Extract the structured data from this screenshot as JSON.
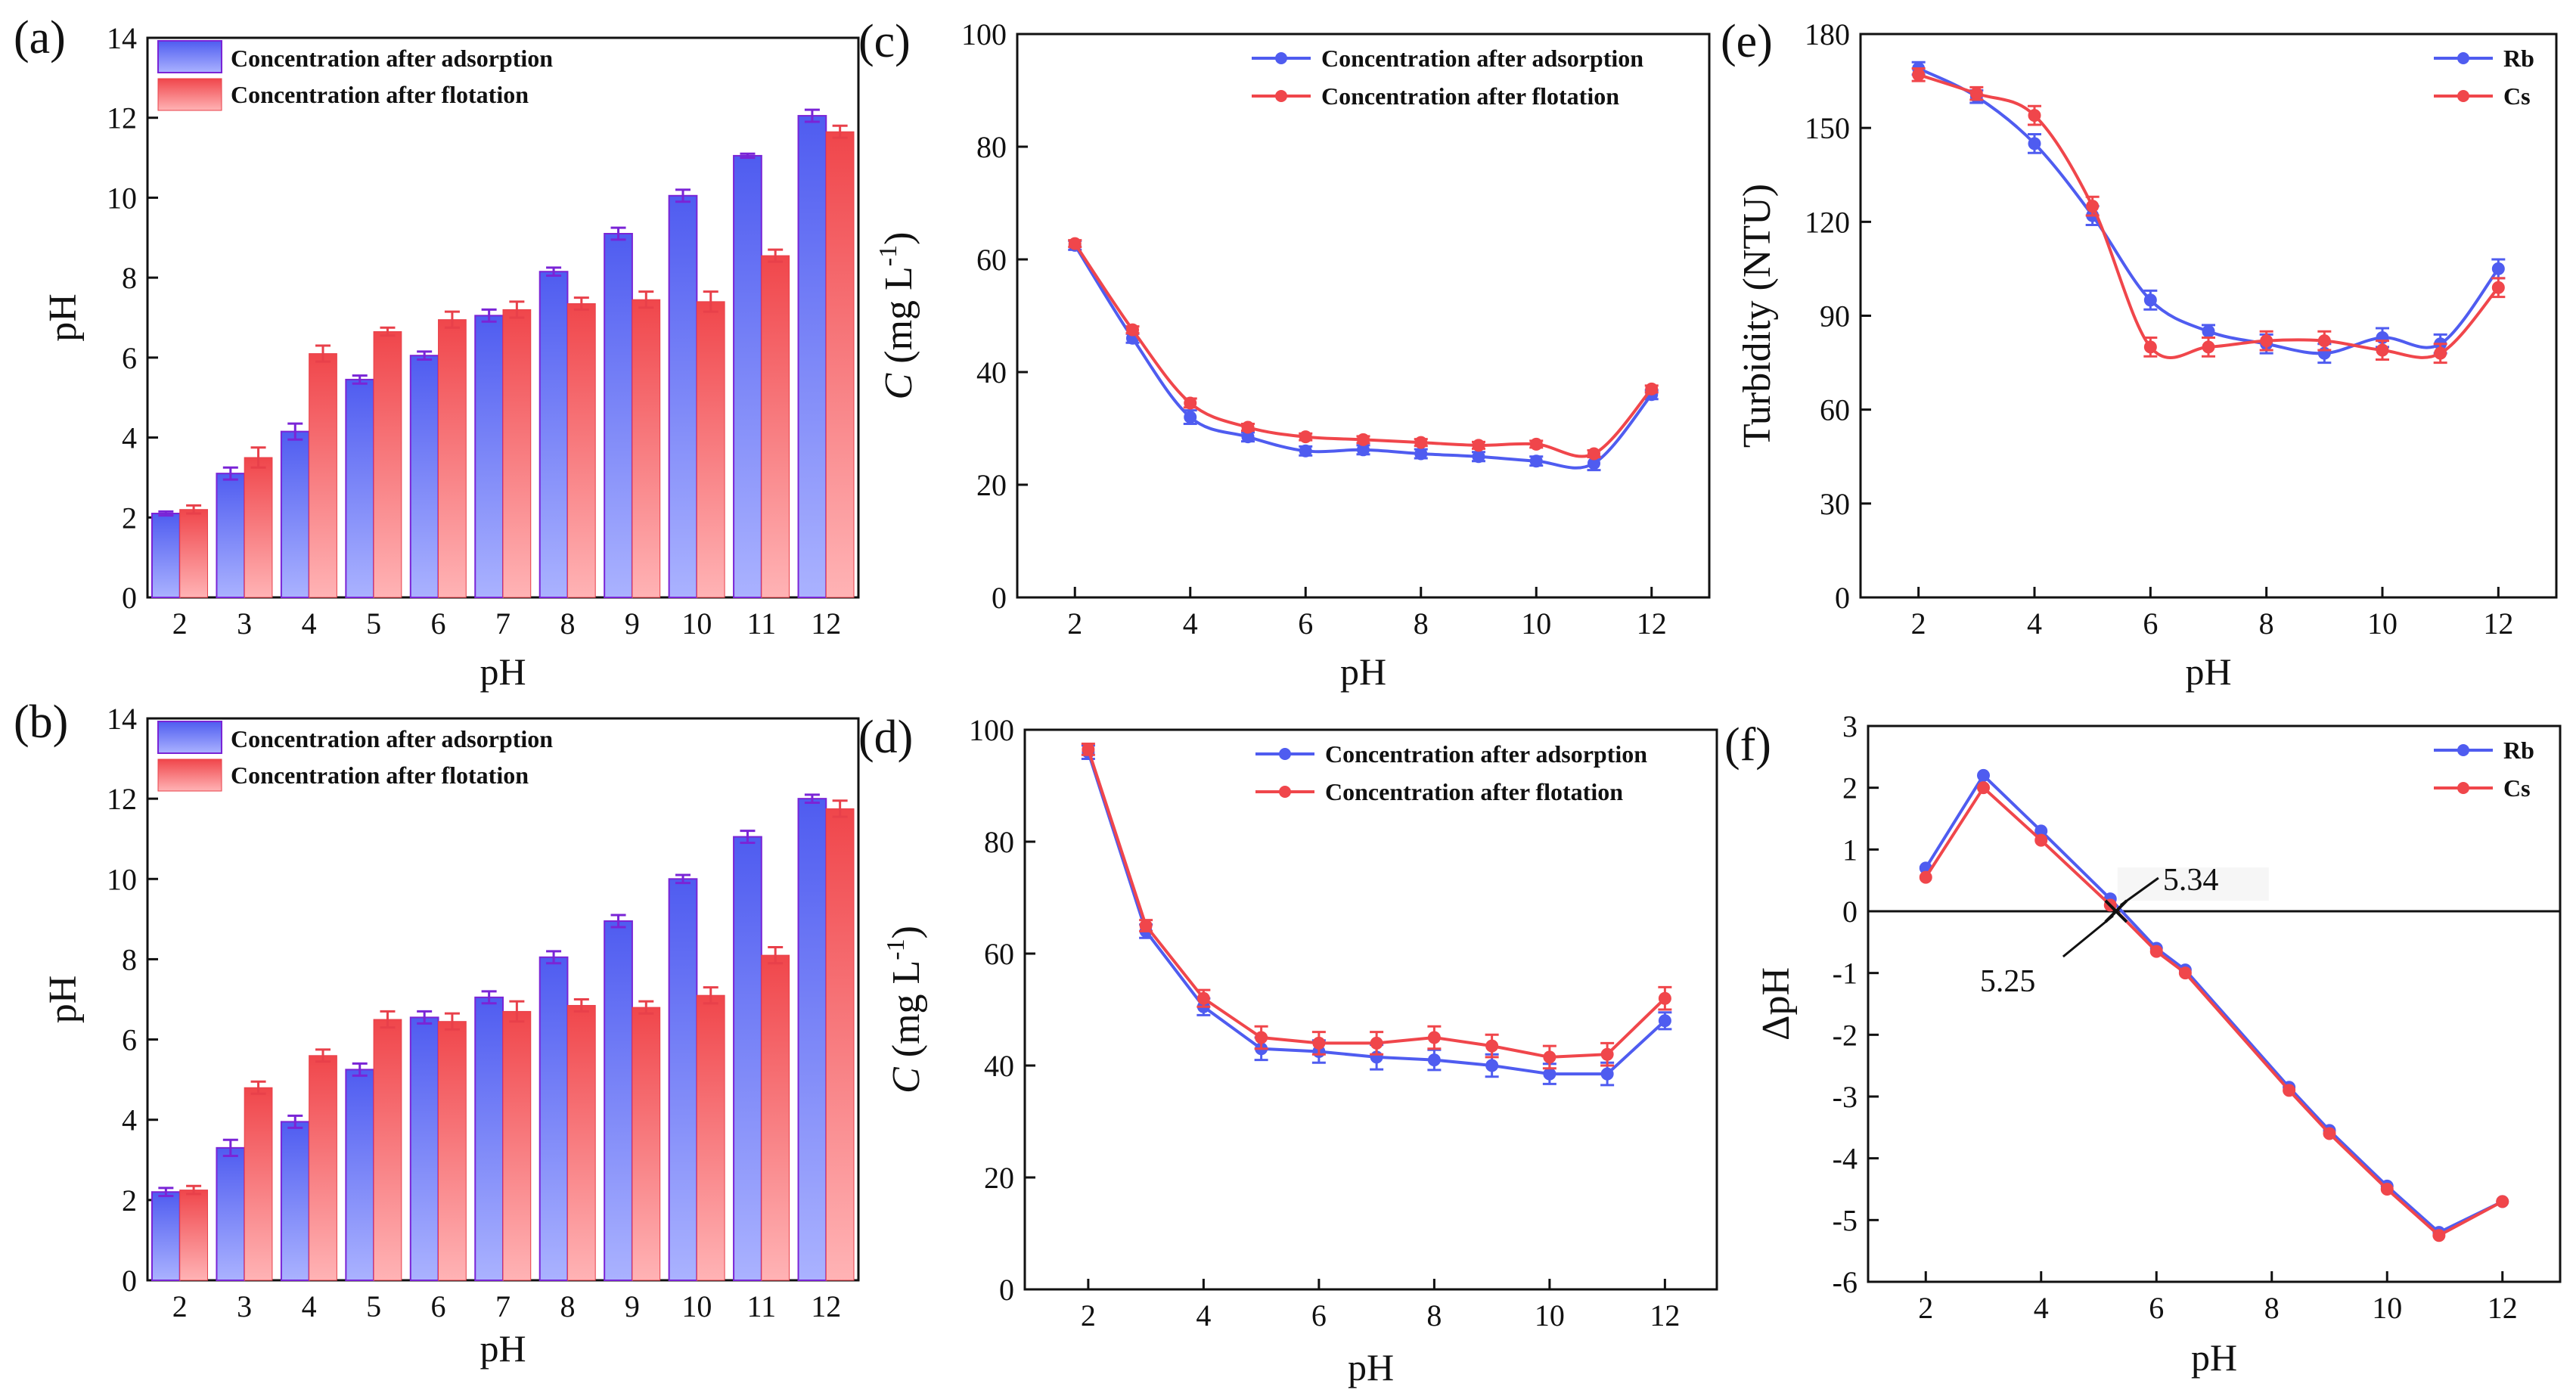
{
  "colors": {
    "blue": "#4f5cf0",
    "blue_light": "#aab2ff",
    "blue_edge": "#7a24d6",
    "red": "#f0464b",
    "red_light": "#ffb3b5",
    "red_edge": "#e8404a",
    "axis": "#111111"
  },
  "chart_data": [
    {
      "panel": "(a)",
      "type": "bar",
      "categories": [
        "2",
        "3",
        "4",
        "5",
        "6",
        "7",
        "8",
        "9",
        "10",
        "11",
        "12"
      ],
      "series": [
        {
          "name": "Concentration after adsorption",
          "values": [
            2.1,
            3.1,
            4.15,
            5.45,
            6.05,
            7.05,
            8.15,
            9.1,
            10.05,
            11.05,
            12.05
          ],
          "errors": [
            0.05,
            0.15,
            0.2,
            0.1,
            0.1,
            0.15,
            0.1,
            0.15,
            0.15,
            0.05,
            0.15
          ]
        },
        {
          "name": "Concentration after flotation",
          "values": [
            2.2,
            3.5,
            6.1,
            6.65,
            6.95,
            7.2,
            7.35,
            7.45,
            7.4,
            8.55,
            11.65
          ]
        }
      ],
      "errors_red": [
        0.1,
        0.25,
        0.2,
        0.1,
        0.2,
        0.2,
        0.15,
        0.2,
        0.25,
        0.15,
        0.15
      ],
      "xlabel": "pH",
      "ylabel": "pH",
      "ylim": [
        0,
        14
      ],
      "yticks": [
        0,
        2,
        4,
        6,
        8,
        10,
        12,
        14
      ]
    },
    {
      "panel": "(b)",
      "type": "bar",
      "categories": [
        "2",
        "3",
        "4",
        "5",
        "6",
        "7",
        "8",
        "9",
        "10",
        "11",
        "12"
      ],
      "series": [
        {
          "name": "Concentration after adsorption",
          "values": [
            2.2,
            3.3,
            3.95,
            5.25,
            6.55,
            7.05,
            8.05,
            8.95,
            10.0,
            11.05,
            12.0
          ],
          "errors": [
            0.1,
            0.2,
            0.15,
            0.15,
            0.15,
            0.15,
            0.15,
            0.15,
            0.1,
            0.15,
            0.1
          ]
        },
        {
          "name": "Concentration after flotation",
          "values": [
            2.25,
            4.8,
            5.6,
            6.5,
            6.45,
            6.7,
            6.85,
            6.8,
            7.1,
            8.1,
            11.75
          ]
        }
      ],
      "errors_red": [
        0.1,
        0.15,
        0.15,
        0.2,
        0.2,
        0.25,
        0.15,
        0.15,
        0.2,
        0.2,
        0.2
      ],
      "xlabel": "pH",
      "ylabel": "pH",
      "ylim": [
        0,
        14
      ],
      "yticks": [
        0,
        2,
        4,
        6,
        8,
        10,
        12,
        14
      ]
    },
    {
      "panel": "(c)",
      "type": "line",
      "x": [
        2,
        3,
        4,
        5,
        6,
        7,
        8,
        9,
        10,
        11,
        12
      ],
      "series": [
        {
          "name": "Concentration after adsorption",
          "values": [
            62.5,
            46,
            32,
            28.5,
            26,
            26.2,
            25.5,
            25,
            24.2,
            23.8,
            36
          ],
          "errors": [
            0.8,
            0.8,
            1.2,
            0.8,
            0.8,
            0.8,
            0.8,
            0.8,
            0.8,
            1.2,
            0.8
          ]
        },
        {
          "name": "Concentration after flotation",
          "values": [
            62.8,
            47.5,
            34.5,
            30.2,
            28.5,
            28,
            27.5,
            27,
            27.2,
            25.5,
            37
          ]
        }
      ],
      "errors_red": [
        0.6,
        0.6,
        0.8,
        0.6,
        0.6,
        0.6,
        0.6,
        0.6,
        0.6,
        0.6,
        0.6
      ],
      "xlabel": "pH",
      "ylabel_italic": "C",
      "ylabel_rest": " (mg L",
      "ylabel_sup": "-1",
      "ylabel_close": ")",
      "xlim": [
        1,
        13
      ],
      "xticks": [
        2,
        4,
        6,
        8,
        10,
        12
      ],
      "ylim": [
        0,
        100
      ],
      "yticks": [
        0,
        20,
        40,
        60,
        80,
        100
      ]
    },
    {
      "panel": "(d)",
      "type": "line",
      "x": [
        2,
        3,
        4,
        5,
        6,
        7,
        8,
        9,
        10,
        11,
        12
      ],
      "series": [
        {
          "name": "Concentration after adsorption",
          "values": [
            96,
            64,
            50.5,
            43,
            42.5,
            41.5,
            41,
            40,
            38.5,
            38.5,
            48
          ],
          "errors": [
            1.2,
            1.2,
            1.5,
            2,
            2,
            2.2,
            1.8,
            2,
            1.8,
            2,
            1.5
          ]
        },
        {
          "name": "Concentration after flotation",
          "values": [
            96.5,
            65,
            52,
            45,
            44,
            44,
            45,
            43.5,
            41.5,
            42,
            52
          ]
        }
      ],
      "errors_red": [
        1,
        1,
        1.5,
        2,
        2,
        2,
        2,
        2,
        2,
        2,
        2
      ],
      "xlabel": "pH",
      "ylabel_italic": "C",
      "ylabel_rest": " (mg L",
      "ylabel_sup": "-1",
      "ylabel_close": ")",
      "xlim": [
        0.9,
        12.9
      ],
      "xticks": [
        2,
        4,
        6,
        8,
        10,
        12
      ],
      "ylim": [
        0,
        100
      ],
      "yticks": [
        0,
        20,
        40,
        60,
        80,
        100
      ]
    },
    {
      "panel": "(e)",
      "type": "line",
      "x": [
        2,
        3,
        4,
        5,
        6,
        7,
        8,
        9,
        10,
        11,
        12
      ],
      "series": [
        {
          "name": "Rb",
          "values": [
            169,
            160,
            145,
            122,
            95,
            85,
            81,
            78,
            83,
            81,
            105
          ],
          "errors": [
            2,
            2,
            3,
            3,
            3,
            2,
            3,
            3,
            3,
            3,
            3
          ]
        },
        {
          "name": "Cs",
          "values": [
            167,
            161,
            154,
            125,
            80,
            80,
            82,
            82,
            79,
            78,
            99
          ]
        }
      ],
      "errors_red": [
        2,
        2,
        3,
        3,
        3,
        3,
        3,
        3,
        3,
        3,
        3
      ],
      "xlabel": "pH",
      "ylabel": "Turbidity (NTU)",
      "xlim": [
        1,
        13
      ],
      "xticks": [
        2,
        4,
        6,
        8,
        10,
        12
      ],
      "ylim": [
        0,
        180
      ],
      "yticks": [
        0,
        30,
        60,
        90,
        120,
        150,
        180
      ]
    },
    {
      "panel": "(f)",
      "type": "line",
      "x": [
        2,
        3,
        4,
        5.2,
        6,
        6.5,
        8.3,
        9,
        10,
        10.9,
        12
      ],
      "series": [
        {
          "name": "Rb",
          "values": [
            0.7,
            2.2,
            1.3,
            0.2,
            -0.6,
            -0.95,
            -2.85,
            -3.55,
            -4.45,
            -5.2,
            -4.7
          ]
        },
        {
          "name": "Cs",
          "values": [
            0.55,
            2.0,
            1.15,
            0.1,
            -0.65,
            -1.0,
            -2.9,
            -3.6,
            -4.5,
            -5.25,
            -4.7
          ]
        }
      ],
      "xlabel": "pH",
      "ylabel": "ΔpH",
      "xlim": [
        1,
        13
      ],
      "xticks": [
        2,
        4,
        6,
        8,
        10,
        12
      ],
      "ylim": [
        -6,
        3
      ],
      "yticks": [
        -6,
        -5,
        -4,
        -3,
        -2,
        -1,
        0,
        1,
        2,
        3
      ],
      "annotations": [
        {
          "text": "5.34",
          "x": 5.34,
          "y": 0
        },
        {
          "text": "5.25",
          "x": 5.25,
          "y": 0
        }
      ]
    }
  ]
}
